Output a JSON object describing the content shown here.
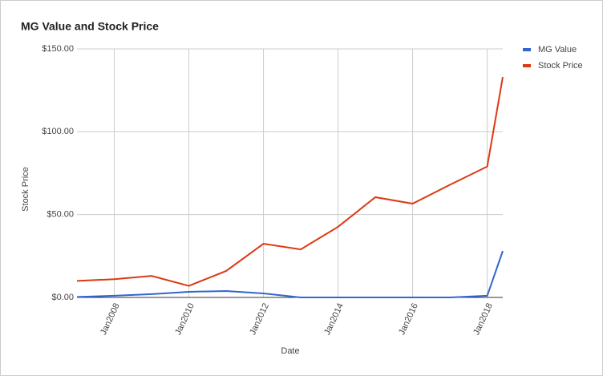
{
  "chart_data": {
    "type": "line",
    "title": "MG Value and Stock Price",
    "x_label": "Date",
    "y_label": "Stock Price",
    "x": [
      "2007-01",
      "2008-01",
      "2009-01",
      "2010-01",
      "2011-01",
      "2012-01",
      "2013-01",
      "2014-01",
      "2015-01",
      "2016-01",
      "2017-01",
      "2018-01",
      "2018-06"
    ],
    "series": [
      {
        "name": "MG Value",
        "color": "#3366cc",
        "values": [
          0.3,
          1,
          2,
          3.4,
          3.9,
          2.4,
          0,
          0,
          0,
          0,
          0,
          1,
          28
        ]
      },
      {
        "name": "Stock Price",
        "color": "#dc3912",
        "values": [
          10,
          11,
          13,
          7,
          16,
          32.4,
          29,
          42.6,
          60.5,
          56.6,
          68,
          79,
          133
        ]
      }
    ],
    "xlim": [
      "2007-01",
      "2018-06"
    ],
    "xticks": [
      {
        "value": "2008-01",
        "label": "Jan2008"
      },
      {
        "value": "2010-01",
        "label": "Jan2010"
      },
      {
        "value": "2012-01",
        "label": "Jan2012"
      },
      {
        "value": "2014-01",
        "label": "Jan2014"
      },
      {
        "value": "2016-01",
        "label": "Jan2016"
      },
      {
        "value": "2018-01",
        "label": "Jan2018"
      }
    ],
    "ylim": [
      0,
      150
    ],
    "yticks": [
      {
        "value": 0,
        "label": "$0.00"
      },
      {
        "value": 50,
        "label": "$50.00"
      },
      {
        "value": 100,
        "label": "$100.00"
      },
      {
        "value": 150,
        "label": "$150.00"
      }
    ],
    "grid": true,
    "legend": "right"
  }
}
